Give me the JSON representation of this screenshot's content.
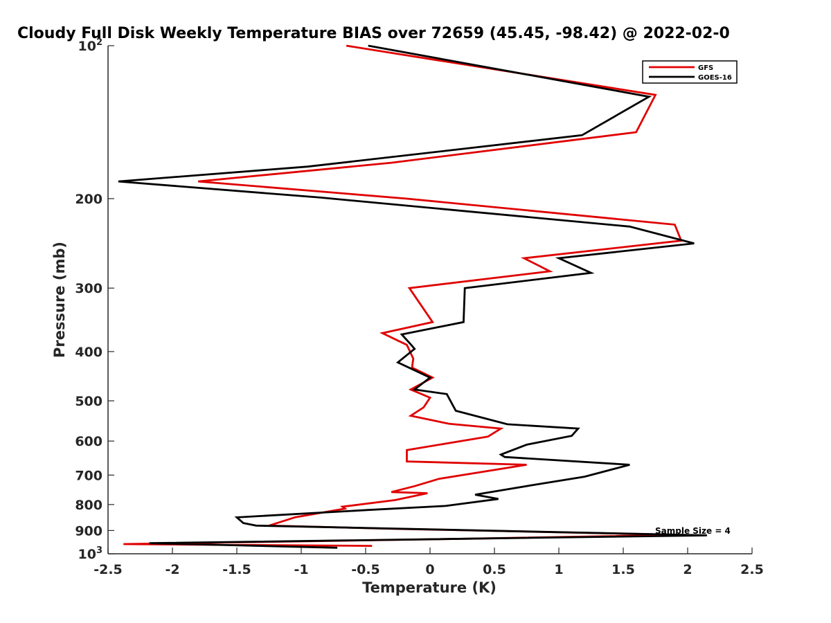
{
  "chart_data": {
    "type": "line",
    "title": "Cloudy Full Disk Weekly Temperature BIAS over 72659 (45.45, -98.42) @ 2022-02-0",
    "xlabel": "Temperature (K)",
    "ylabel": "Pressure (mb)",
    "xlim": [
      -2.5,
      2.5
    ],
    "ylim": [
      100,
      1000
    ],
    "y_scale": "log",
    "y_reversed": true,
    "x_ticks": [
      {
        "value": -2.5,
        "label": "-2.5"
      },
      {
        "value": -2,
        "label": "-2"
      },
      {
        "value": -1.5,
        "label": "-1.5"
      },
      {
        "value": -1,
        "label": "-1"
      },
      {
        "value": -0.5,
        "label": "-0.5"
      },
      {
        "value": 0,
        "label": "0"
      },
      {
        "value": 0.5,
        "label": "0.5"
      },
      {
        "value": 1,
        "label": "1"
      },
      {
        "value": 1.5,
        "label": "1.5"
      },
      {
        "value": 2,
        "label": "2"
      },
      {
        "value": 2.5,
        "label": "2.5"
      }
    ],
    "y_ticks": [
      {
        "value": 100,
        "label": "10",
        "sup": "2"
      },
      {
        "value": 200,
        "label": "200",
        "sup": ""
      },
      {
        "value": 300,
        "label": "300",
        "sup": ""
      },
      {
        "value": 400,
        "label": "400",
        "sup": ""
      },
      {
        "value": 500,
        "label": "500",
        "sup": ""
      },
      {
        "value": 600,
        "label": "600",
        "sup": ""
      },
      {
        "value": 700,
        "label": "700",
        "sup": ""
      },
      {
        "value": 800,
        "label": "800",
        "sup": ""
      },
      {
        "value": 900,
        "label": "900",
        "sup": ""
      },
      {
        "value": 1000,
        "label": "10",
        "sup": "3"
      }
    ],
    "legend": {
      "placement": "top-right"
    },
    "annotation": "Sample Size = 4",
    "series": [
      {
        "name": "GFS",
        "color": "#e00000",
        "points": [
          [
            -0.65,
            100
          ],
          [
            1.75,
            125
          ],
          [
            1.6,
            148
          ],
          [
            -0.3,
            170
          ],
          [
            -1.8,
            185
          ],
          [
            -0.18,
            200
          ],
          [
            1.9,
            225
          ],
          [
            1.95,
            242
          ],
          [
            0.73,
            262
          ],
          [
            0.93,
            278
          ],
          [
            -0.16,
            300
          ],
          [
            0.02,
            350
          ],
          [
            -0.37,
            368
          ],
          [
            -0.18,
            388
          ],
          [
            -0.13,
            413
          ],
          [
            -0.14,
            430
          ],
          [
            0.02,
            450
          ],
          [
            -0.15,
            475
          ],
          [
            0.0,
            493
          ],
          [
            -0.05,
            515
          ],
          [
            -0.15,
            535
          ],
          [
            0.15,
            555
          ],
          [
            0.55,
            567
          ],
          [
            0.45,
            588
          ],
          [
            -0.18,
            625
          ],
          [
            -0.18,
            658
          ],
          [
            0.75,
            668
          ],
          [
            0.07,
            712
          ],
          [
            -0.12,
            736
          ],
          [
            -0.3,
            756
          ],
          [
            -0.02,
            760
          ],
          [
            -0.27,
            784
          ],
          [
            -0.68,
            808
          ],
          [
            -0.66,
            815
          ],
          [
            -1.05,
            848
          ],
          [
            -1.1,
            856
          ],
          [
            -1.25,
            880
          ],
          [
            -0.35,
            892
          ],
          [
            1.95,
            918
          ],
          [
            0.3,
            934
          ],
          [
            -2.38,
            957
          ],
          [
            -0.45,
            965
          ]
        ]
      },
      {
        "name": "GOES-16",
        "color": "#000000",
        "points": [
          [
            -0.48,
            100
          ],
          [
            1.7,
            126
          ],
          [
            1.18,
            150
          ],
          [
            -0.95,
            173
          ],
          [
            -2.42,
            185
          ],
          [
            -0.85,
            199
          ],
          [
            1.55,
            227
          ],
          [
            2.05,
            245
          ],
          [
            1.0,
            262
          ],
          [
            1.25,
            280
          ],
          [
            0.27,
            300
          ],
          [
            0.26,
            350
          ],
          [
            -0.22,
            370
          ],
          [
            -0.15,
            387
          ],
          [
            -0.12,
            395
          ],
          [
            -0.25,
            420
          ],
          [
            0.0,
            450
          ],
          [
            -0.12,
            475
          ],
          [
            0.13,
            485
          ],
          [
            0.2,
            523
          ],
          [
            0.6,
            556
          ],
          [
            1.15,
            567
          ],
          [
            1.1,
            586
          ],
          [
            0.75,
            610
          ],
          [
            0.55,
            638
          ],
          [
            0.58,
            645
          ],
          [
            1.55,
            668
          ],
          [
            1.2,
            705
          ],
          [
            0.83,
            730
          ],
          [
            0.35,
            765
          ],
          [
            0.53,
            780
          ],
          [
            0.12,
            805
          ],
          [
            -0.48,
            820
          ],
          [
            -1.5,
            848
          ],
          [
            -1.45,
            870
          ],
          [
            -1.35,
            880
          ],
          [
            2.15,
            920
          ],
          [
            -2.18,
            953
          ],
          [
            -0.72,
            973
          ]
        ]
      }
    ]
  }
}
